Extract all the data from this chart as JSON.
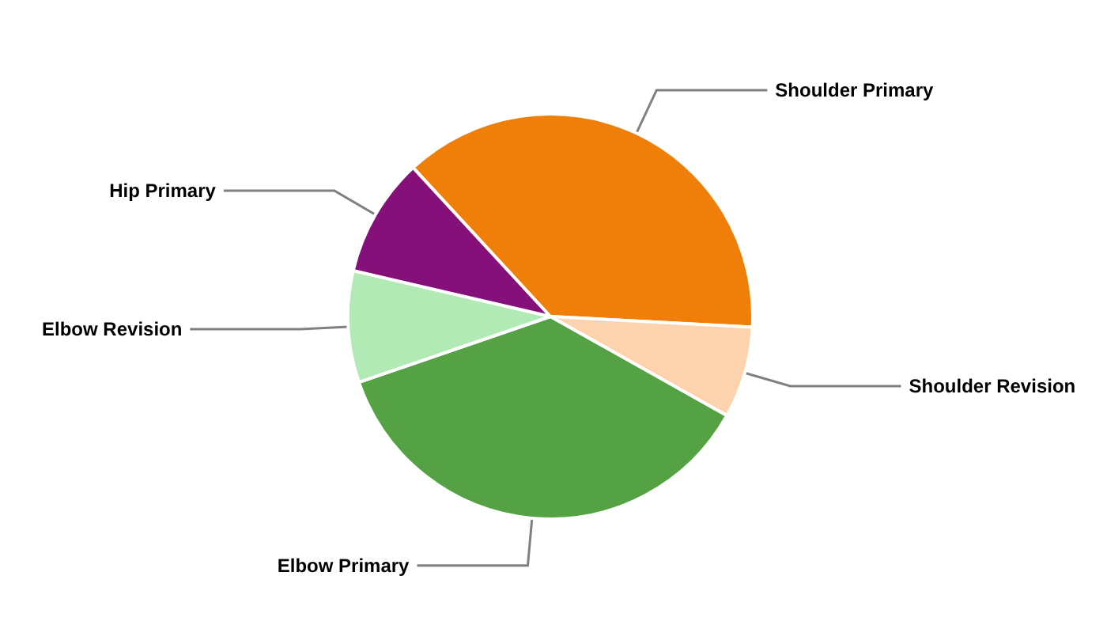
{
  "chart_data": {
    "type": "pie",
    "categories": [
      "Shoulder Primary",
      "Shoulder Revision",
      "Elbow Primary",
      "Elbow Revision",
      "Hip Primary"
    ],
    "values": [
      37.7,
      7.3,
      36.6,
      8.9,
      9.5
    ],
    "colors": [
      "#f07f09",
      "#fcd3ad",
      "#54a244",
      "#b1eab5",
      "#861079"
    ],
    "legend": false
  }
}
